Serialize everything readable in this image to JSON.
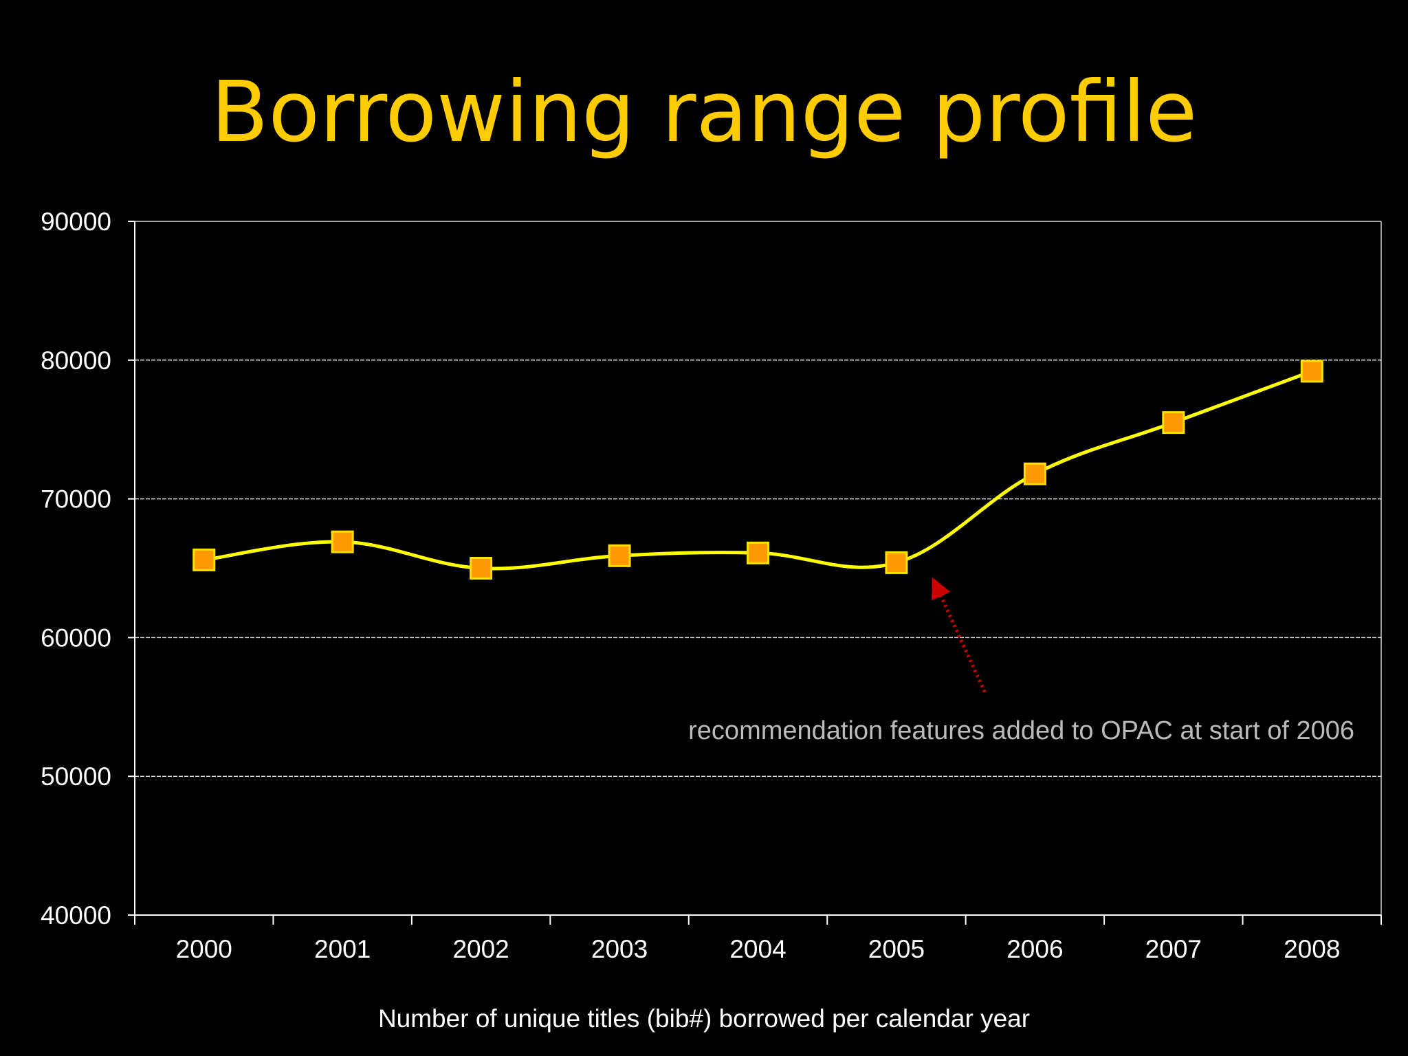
{
  "slide": {
    "title": "Borrowing range profile"
  },
  "colors": {
    "background": "#000000",
    "title": "#FFCC00",
    "line": "#FFFF00",
    "marker_fill": "#FF9900",
    "marker_stroke": "#FFE000",
    "gridline": "#FFFFFF",
    "axis": "#FFFFFF",
    "annotation_arrow": "#CC0000",
    "annotation_text": "#BBBBBB"
  },
  "chart_data": {
    "type": "line",
    "title": "Borrowing range profile",
    "categories": [
      "2000",
      "2001",
      "2002",
      "2003",
      "2004",
      "2005",
      "2006",
      "2007",
      "2008"
    ],
    "series": [
      {
        "values": [
          65600,
          66900,
          65000,
          65900,
          66100,
          65400,
          71800,
          75500,
          79200
        ],
        "marker": "square",
        "smooth": true
      }
    ],
    "ylim": [
      40000,
      90000
    ],
    "yticks": [
      "40000",
      "50000",
      "60000",
      "70000",
      "80000",
      "90000"
    ],
    "grid": true,
    "legend": "none",
    "xlabel": "Number of unique titles (bib#) borrowed per calendar year",
    "ylabel": "",
    "annotation": {
      "text": "recommendation features added to OPAC at start of 2006",
      "points_to_x": 5.25,
      "points_to_y": 65400,
      "arrow_style": "dotted"
    }
  }
}
